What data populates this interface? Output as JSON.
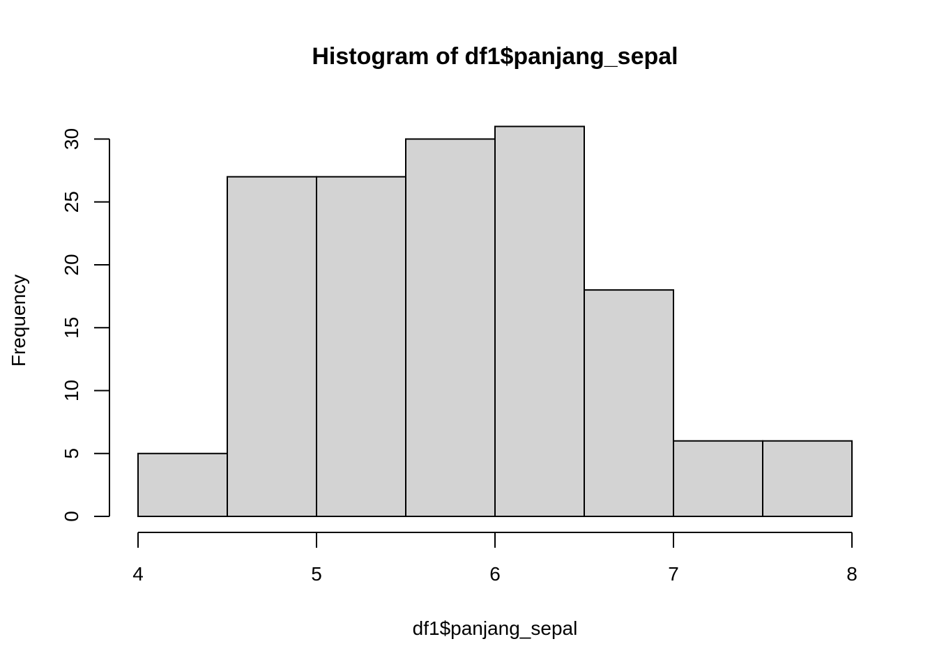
{
  "chart_data": {
    "type": "bar",
    "title": "Histogram of df1$panjang_sepal",
    "xlabel": "df1$panjang_sepal",
    "ylabel": "Frequency",
    "bins": [
      {
        "start": 4.0,
        "end": 4.5,
        "count": 5
      },
      {
        "start": 4.5,
        "end": 5.0,
        "count": 27
      },
      {
        "start": 5.0,
        "end": 5.5,
        "count": 27
      },
      {
        "start": 5.5,
        "end": 6.0,
        "count": 30
      },
      {
        "start": 6.0,
        "end": 6.5,
        "count": 31
      },
      {
        "start": 6.5,
        "end": 7.0,
        "count": 18
      },
      {
        "start": 7.0,
        "end": 7.5,
        "count": 6
      },
      {
        "start": 7.5,
        "end": 8.0,
        "count": 6
      }
    ],
    "xlim": [
      4,
      8
    ],
    "ylim": [
      0,
      31
    ],
    "x_ticks": [
      4,
      5,
      6,
      7,
      8
    ],
    "y_ticks": [
      0,
      5,
      10,
      15,
      20,
      25,
      30
    ],
    "grid": false,
    "colors": {
      "bar_fill": "#d3d3d3",
      "bar_stroke": "#000000"
    }
  }
}
